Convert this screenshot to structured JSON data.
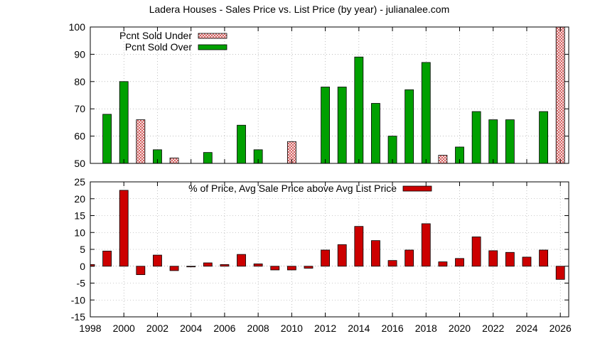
{
  "chart_data": {
    "title": "Ladera Houses - Sales Price vs. List Price (by year) - julianalee.com",
    "x_ticks": [
      "1998",
      "2000",
      "2002",
      "2004",
      "2006",
      "2008",
      "2010",
      "2012",
      "2014",
      "2016",
      "2018",
      "2020",
      "2022",
      "2024",
      "2026"
    ],
    "colors": {
      "over": "#00a000",
      "under": "#e8b0b0",
      "pct": "#cc0000"
    },
    "panels": [
      {
        "type": "bar",
        "ylim": [
          50,
          100
        ],
        "y_ticks": [
          "50",
          "60",
          "70",
          "80",
          "90",
          "100"
        ],
        "grid": true,
        "legend_position": "top-left",
        "series": [
          {
            "name": "Pcnt Sold Under",
            "style": "hatched",
            "points": [
              {
                "x": 2001,
                "y": 66
              },
              {
                "x": 2003,
                "y": 52
              },
              {
                "x": 2010,
                "y": 58
              },
              {
                "x": 2019,
                "y": 53
              },
              {
                "x": 2026,
                "y": 100
              }
            ]
          },
          {
            "name": "Pcnt Sold Over",
            "style": "solid",
            "points": [
              {
                "x": 1999,
                "y": 68
              },
              {
                "x": 2000,
                "y": 80
              },
              {
                "x": 2002,
                "y": 55
              },
              {
                "x": 2005,
                "y": 54
              },
              {
                "x": 2007,
                "y": 64
              },
              {
                "x": 2008,
                "y": 55
              },
              {
                "x": 2012,
                "y": 78
              },
              {
                "x": 2013,
                "y": 78
              },
              {
                "x": 2014,
                "y": 89
              },
              {
                "x": 2015,
                "y": 72
              },
              {
                "x": 2016,
                "y": 60
              },
              {
                "x": 2017,
                "y": 77
              },
              {
                "x": 2018,
                "y": 87
              },
              {
                "x": 2020,
                "y": 56
              },
              {
                "x": 2021,
                "y": 69
              },
              {
                "x": 2022,
                "y": 66
              },
              {
                "x": 2023,
                "y": 66
              },
              {
                "x": 2025,
                "y": 69
              }
            ]
          }
        ]
      },
      {
        "type": "bar",
        "ylim": [
          -15,
          25
        ],
        "y_ticks": [
          "-15",
          "-10",
          "-5",
          "0",
          "5",
          "10",
          "15",
          "20",
          "25"
        ],
        "grid": true,
        "legend_position": "top-center",
        "series": [
          {
            "name": "% of Price, Avg Sale Price above Avg List Price",
            "style": "solid",
            "points": [
              {
                "x": 1998,
                "y": 0.5
              },
              {
                "x": 1999,
                "y": 4.5
              },
              {
                "x": 2000,
                "y": 22.5
              },
              {
                "x": 2001,
                "y": -2.5
              },
              {
                "x": 2002,
                "y": 3.3
              },
              {
                "x": 2003,
                "y": -1.3
              },
              {
                "x": 2004,
                "y": -0.2
              },
              {
                "x": 2005,
                "y": 1.0
              },
              {
                "x": 2006,
                "y": 0.5
              },
              {
                "x": 2007,
                "y": 3.5
              },
              {
                "x": 2008,
                "y": 0.7
              },
              {
                "x": 2009,
                "y": -1.1
              },
              {
                "x": 2010,
                "y": -1.1
              },
              {
                "x": 2011,
                "y": -0.6
              },
              {
                "x": 2012,
                "y": 4.8
              },
              {
                "x": 2013,
                "y": 6.4
              },
              {
                "x": 2014,
                "y": 11.8
              },
              {
                "x": 2015,
                "y": 7.6
              },
              {
                "x": 2016,
                "y": 1.7
              },
              {
                "x": 2017,
                "y": 4.8
              },
              {
                "x": 2018,
                "y": 12.6
              },
              {
                "x": 2019,
                "y": 1.3
              },
              {
                "x": 2020,
                "y": 2.3
              },
              {
                "x": 2021,
                "y": 8.7
              },
              {
                "x": 2022,
                "y": 4.6
              },
              {
                "x": 2023,
                "y": 4.1
              },
              {
                "x": 2024,
                "y": 2.7
              },
              {
                "x": 2025,
                "y": 4.8
              },
              {
                "x": 2026,
                "y": -3.9
              }
            ]
          }
        ]
      }
    ]
  }
}
